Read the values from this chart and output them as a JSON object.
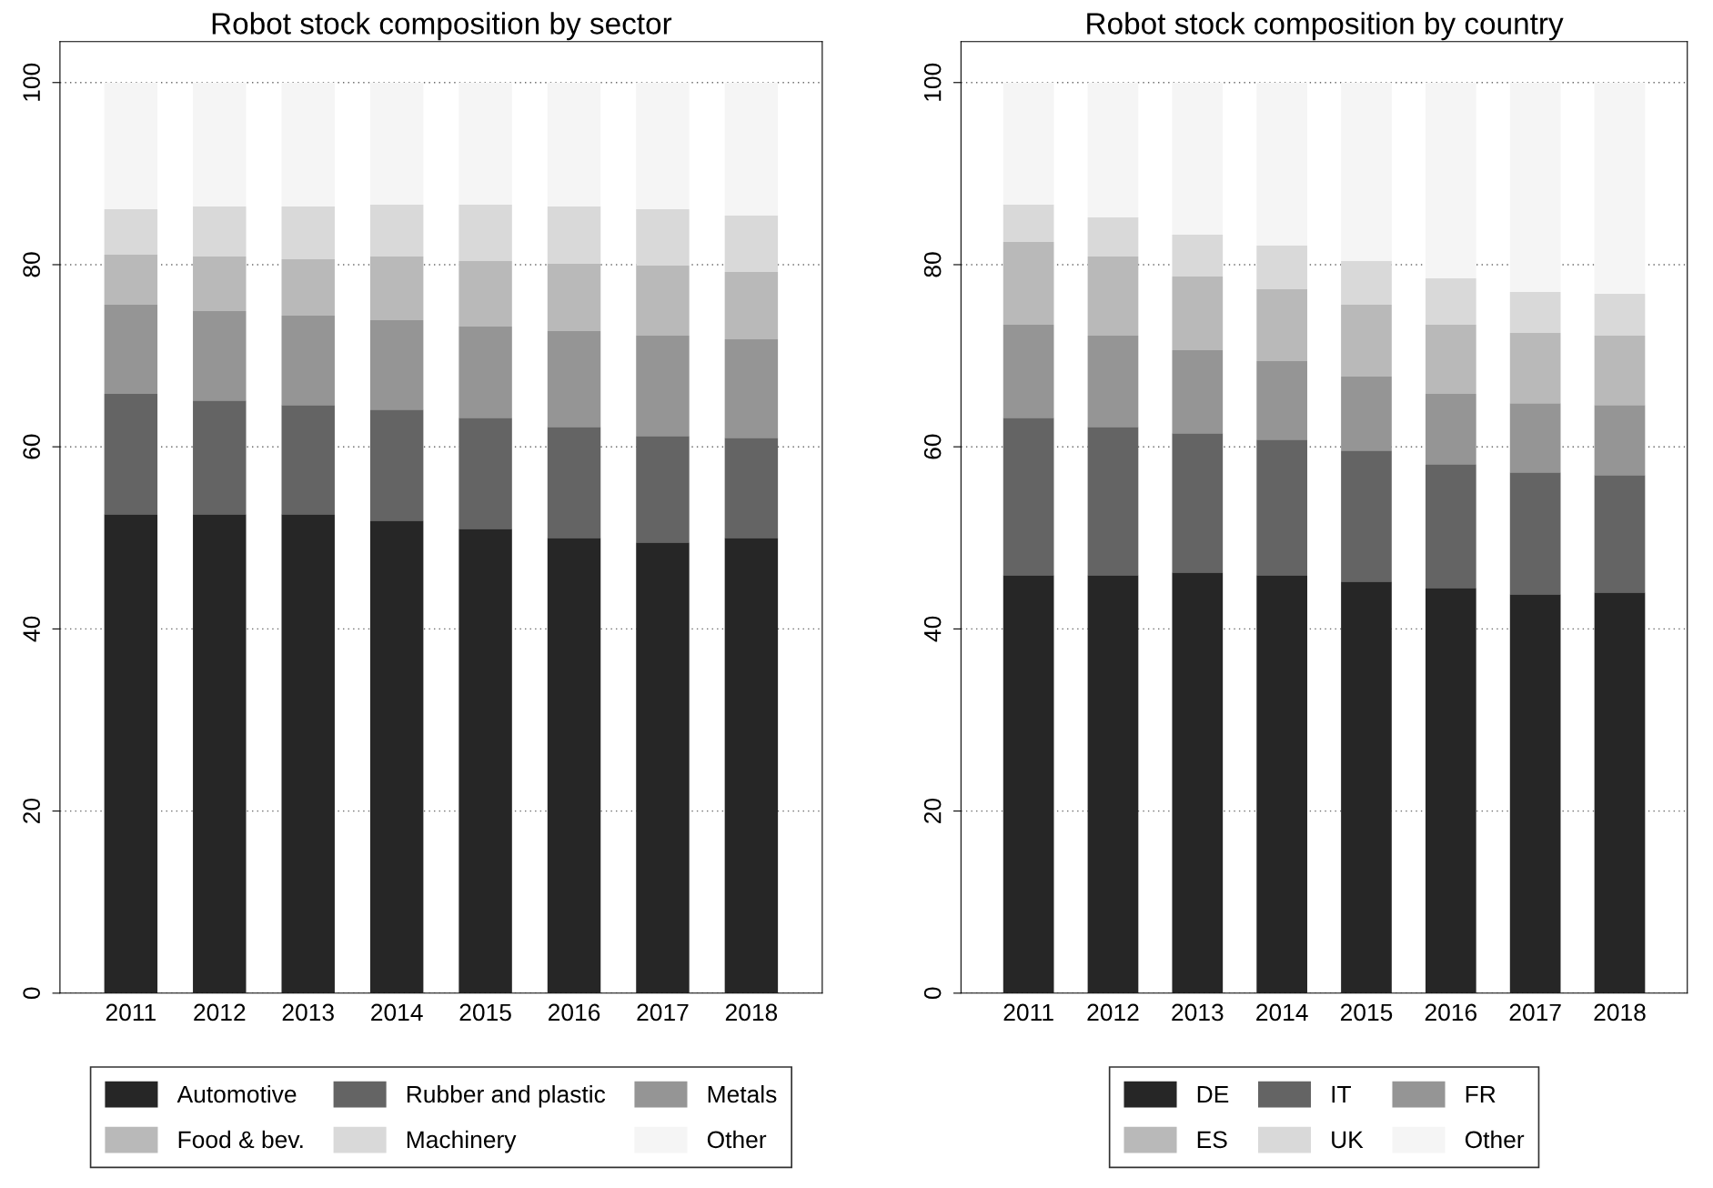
{
  "chart_data": [
    {
      "type": "bar",
      "title": "Robot stock composition by sector",
      "stacked": true,
      "categories": [
        "2011",
        "2012",
        "2013",
        "2014",
        "2015",
        "2016",
        "2017",
        "2018"
      ],
      "ylim": [
        0,
        104.5
      ],
      "yticks": [
        0,
        20,
        40,
        60,
        80,
        100
      ],
      "grid": "y",
      "legend": "bottom",
      "series": [
        {
          "name": "Automotive",
          "color": "#262626",
          "values": [
            52.6,
            52.6,
            52.6,
            51.9,
            51.0,
            50.0,
            49.5,
            50.0
          ]
        },
        {
          "name": "Rubber and plastic",
          "color": "#646464",
          "values": [
            13.2,
            12.5,
            12.0,
            12.2,
            12.2,
            12.2,
            11.7,
            11.0
          ]
        },
        {
          "name": "Metals",
          "color": "#959595",
          "values": [
            9.8,
            9.8,
            9.8,
            9.8,
            10.0,
            10.5,
            11.0,
            10.8
          ]
        },
        {
          "name": "Food & bev.",
          "color": "#b9b9b9",
          "values": [
            5.5,
            6.0,
            6.2,
            7.0,
            7.2,
            7.4,
            7.7,
            7.4
          ]
        },
        {
          "name": "Machinery",
          "color": "#d9d9d9",
          "values": [
            5.0,
            5.5,
            5.8,
            5.7,
            6.2,
            6.3,
            6.2,
            6.2
          ]
        },
        {
          "name": "Other",
          "color": "#f5f5f5",
          "values": [
            13.9,
            13.6,
            13.6,
            13.4,
            13.4,
            13.6,
            13.9,
            14.6
          ]
        }
      ]
    },
    {
      "type": "bar",
      "title": "Robot stock composition by country",
      "stacked": true,
      "categories": [
        "2011",
        "2012",
        "2013",
        "2014",
        "2015",
        "2016",
        "2017",
        "2018"
      ],
      "ylim": [
        0,
        104.5
      ],
      "yticks": [
        0,
        20,
        40,
        60,
        80,
        100
      ],
      "grid": "y",
      "legend": "bottom",
      "series": [
        {
          "name": "DE",
          "color": "#262626",
          "values": [
            45.9,
            45.9,
            46.2,
            45.9,
            45.2,
            44.5,
            43.8,
            44.0
          ]
        },
        {
          "name": "IT",
          "color": "#646464",
          "values": [
            17.3,
            16.3,
            15.3,
            14.9,
            14.4,
            13.6,
            13.4,
            12.9
          ]
        },
        {
          "name": "FR",
          "color": "#959595",
          "values": [
            10.2,
            10.0,
            9.1,
            8.6,
            8.1,
            7.7,
            7.6,
            7.7
          ]
        },
        {
          "name": "ES",
          "color": "#b9b9b9",
          "values": [
            9.1,
            8.7,
            8.1,
            7.9,
            7.9,
            7.6,
            7.7,
            7.6
          ]
        },
        {
          "name": "UK",
          "color": "#d9d9d9",
          "values": [
            4.1,
            4.3,
            4.6,
            4.8,
            4.8,
            5.1,
            4.5,
            4.6
          ]
        },
        {
          "name": "Other",
          "color": "#f5f5f5",
          "values": [
            13.4,
            14.8,
            16.7,
            17.9,
            19.6,
            21.5,
            23.0,
            23.2
          ]
        }
      ]
    }
  ]
}
